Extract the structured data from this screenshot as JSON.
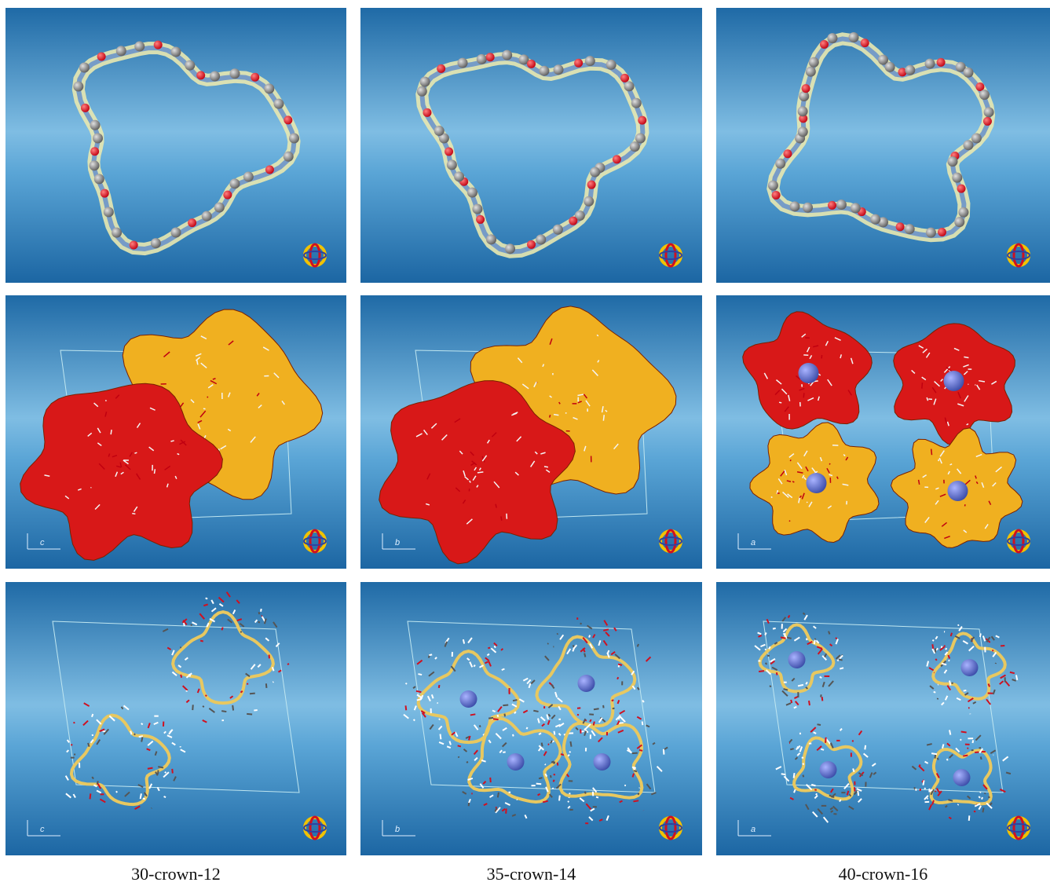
{
  "figure": {
    "columns": [
      {
        "caption": "30-crown-12",
        "axis_labels": [
          "c",
          "c"
        ]
      },
      {
        "caption": "35-crown-14",
        "axis_labels": [
          "b",
          "b"
        ]
      },
      {
        "caption": "40-crown-16",
        "axis_labels": [
          "a",
          "a"
        ]
      }
    ]
  }
}
